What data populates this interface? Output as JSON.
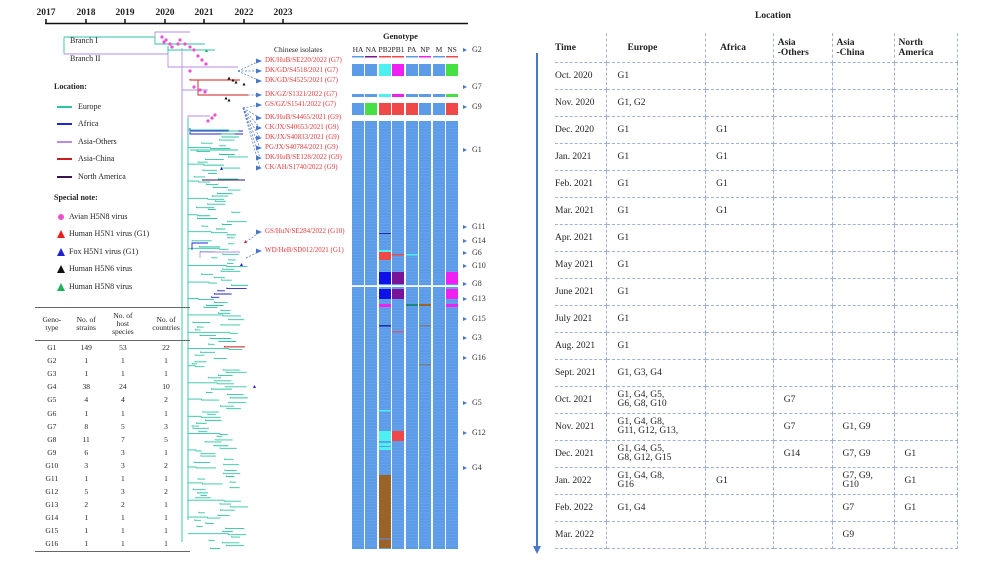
{
  "timeline": {
    "years": [
      "2017",
      "2018",
      "2019",
      "2020",
      "2021",
      "2022",
      "2023"
    ]
  },
  "branches": {
    "branch1": "Branch I",
    "branch2": "Branch II"
  },
  "legend": {
    "location_title": "Location:",
    "locations": [
      {
        "label": "Europe",
        "color": "#2ec4a4"
      },
      {
        "label": "Africa",
        "color": "#2424c8"
      },
      {
        "label": "Asia-Others",
        "color": "#b48ee6"
      },
      {
        "label": "Asia-China",
        "color": "#c81e1e"
      },
      {
        "label": "North America",
        "color": "#3a1450"
      }
    ],
    "special_title": "Special note:",
    "special": [
      {
        "label": "Avian H5N8 virus",
        "shape": "circle",
        "color": "#f050d0"
      },
      {
        "label": "Human H5N1 virus (G1)",
        "shape": "triangle",
        "color": "#e81e1e"
      },
      {
        "label": "Fox H5N1 virus (G1)",
        "shape": "triangle",
        "color": "#2020d0"
      },
      {
        "label": "Human H5N6 virus",
        "shape": "triangle",
        "color": "#111111"
      },
      {
        "label": "Human H5N8 virus",
        "shape": "triangle",
        "color": "#20b060"
      }
    ]
  },
  "isolates": {
    "title": "Chinese isolates",
    "items": [
      "DK/HuB/SE220/2022 (G7)",
      "DK/GD/S4518/2021 (G7)",
      "DK/GD/S4525/2021 (G7)",
      "DK/GZ/S1321/2022 (G7)",
      "GS/GZ/S1541/2022 (G7)",
      "DK/HuB/S4465/2021 (G9)",
      "CK/JX/S40653/2021 (G9)",
      "DK/JX/S40833/2021 (G9)",
      "PG/JX/S40784/2021 (G9)",
      "DK/HuB/SE128/2022 (G9)",
      "CK/AH/S1740/2022 (G9)",
      "GS/HuN/SE284/2022 (G10)",
      "WD/HeB/SD012/2021 (G1)"
    ]
  },
  "genotype_panel": {
    "title": "Genotype",
    "genes": [
      "HA",
      "NA",
      "PB2",
      "PB1",
      "PA",
      "NP",
      "M",
      "NS"
    ],
    "base_color": "#5b9be8",
    "marker_colors": {
      "cyan": "#4cf0f0",
      "magenta": "#f020f0",
      "green": "#44e044",
      "red": "#f04848",
      "blue": "#1010e8",
      "purple": "#7a129a",
      "teal": "#1a8a7a",
      "brown": "#9a6428",
      "navy": "#1a2aa8",
      "grey": "#7a7a8a"
    },
    "labels": [
      "G2",
      "G7",
      "G9",
      "G1",
      "G11",
      "G14",
      "G6",
      "G10",
      "G8",
      "G13",
      "G15",
      "G3",
      "G16",
      "G5",
      "G12",
      "G4"
    ]
  },
  "genotype_table": {
    "headers": [
      "Geno-\ntype",
      "No. of\nstrains",
      "No. of\nhost\nspecies",
      "No. of\ncountries"
    ],
    "rows": [
      [
        "G1",
        "149",
        "53",
        "22"
      ],
      [
        "G2",
        "1",
        "1",
        "1"
      ],
      [
        "G3",
        "1",
        "1",
        "1"
      ],
      [
        "G4",
        "38",
        "24",
        "10"
      ],
      [
        "G5",
        "4",
        "4",
        "2"
      ],
      [
        "G6",
        "1",
        "1",
        "1"
      ],
      [
        "G7",
        "8",
        "5",
        "3"
      ],
      [
        "G8",
        "11",
        "7",
        "5"
      ],
      [
        "G9",
        "6",
        "3",
        "1"
      ],
      [
        "G10",
        "3",
        "3",
        "2"
      ],
      [
        "G11",
        "1",
        "1",
        "1"
      ],
      [
        "G12",
        "5",
        "3",
        "2"
      ],
      [
        "G13",
        "2",
        "2",
        "1"
      ],
      [
        "G14",
        "1",
        "1",
        "1"
      ],
      [
        "G15",
        "1",
        "1",
        "1"
      ],
      [
        "G16",
        "1",
        "1",
        "1"
      ]
    ]
  },
  "location_table": {
    "title": "Location",
    "headers": [
      "Time",
      "Europe",
      "Africa",
      "Asia\n-Others",
      "Asia\n-China",
      "North\nAmerica"
    ],
    "rows": [
      [
        "Oct. 2020",
        "G1",
        "",
        "",
        "",
        ""
      ],
      [
        "Nov. 2020",
        "G1, G2",
        "",
        "",
        "",
        ""
      ],
      [
        "Dec. 2020",
        "G1",
        "G1",
        "",
        "",
        ""
      ],
      [
        "Jan. 2021",
        "G1",
        "G1",
        "",
        "",
        ""
      ],
      [
        "Feb. 2021",
        "G1",
        "G1",
        "",
        "",
        ""
      ],
      [
        "Mar. 2021",
        "G1",
        "G1",
        "",
        "",
        ""
      ],
      [
        "Apr. 2021",
        "G1",
        "",
        "",
        "",
        ""
      ],
      [
        "May 2021",
        "G1",
        "",
        "",
        "",
        ""
      ],
      [
        "June 2021",
        "G1",
        "",
        "",
        "",
        ""
      ],
      [
        "July 2021",
        "G1",
        "",
        "",
        "",
        ""
      ],
      [
        "Aug. 2021",
        "G1",
        "",
        "",
        "",
        ""
      ],
      [
        "Sept. 2021",
        "G1, G3, G4",
        "",
        "",
        "",
        ""
      ],
      [
        "Oct. 2021",
        "G1, G4, G5,\nG6, G8, G10",
        "",
        "G7",
        "",
        ""
      ],
      [
        "Nov. 2021",
        "G1, G4, G8,\nG11, G12, G13,",
        "",
        "G7",
        "G1, G9",
        ""
      ],
      [
        "Dec. 2021",
        "G1, G4, G5,\nG8, G12, G15",
        "",
        "G14",
        "G7, G9",
        "G1"
      ],
      [
        "Jan. 2022",
        "G1, G4, G8,\nG16",
        "G1",
        "",
        "G7, G9,\nG10",
        "G1"
      ],
      [
        "Feb. 2022",
        "G1, G4",
        "",
        "",
        "G7",
        "G1"
      ],
      [
        "Mar. 2022",
        "",
        "",
        "",
        "G9",
        ""
      ]
    ],
    "arrow_color": "#4a78c8"
  }
}
